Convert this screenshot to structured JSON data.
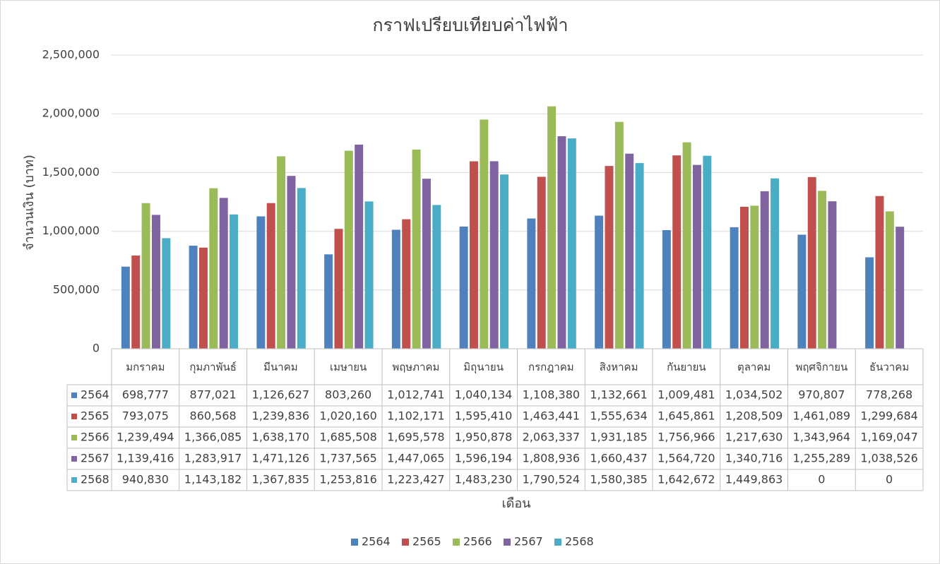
{
  "chart_data": {
    "type": "bar",
    "title": "กราฟเปรียบเทียบค่าไฟฟ้า",
    "y_label": "จำนวนเงิน (บาท)",
    "x_label": "เดือน",
    "categories": [
      "มกราคม",
      "กุมภาพันธ์",
      "มีนาคม",
      "เมษายน",
      "พฤษภาคม",
      "มิถุนายน",
      "กรกฎาคม",
      "สิงหาคม",
      "กันยายน",
      "ตุลาคม",
      "พฤศจิกายน",
      "ธันวาคม"
    ],
    "series": [
      {
        "name": "2564",
        "color": "#4f81bd",
        "values": [
          698777,
          877021,
          1126627,
          803260,
          1012741,
          1040134,
          1108380,
          1132661,
          1009481,
          1034502,
          970807,
          778268
        ],
        "value_labels": [
          "698,777",
          "877,021",
          "1,126,627",
          "803,260",
          "1,012,741",
          "1,040,134",
          "1,108,380",
          "1,132,661",
          "1,009,481",
          "1,034,502",
          "970,807",
          "778,268"
        ]
      },
      {
        "name": "2565",
        "color": "#c0504d",
        "values": [
          793075,
          860568,
          1239836,
          1020160,
          1102171,
          1595410,
          1463441,
          1555634,
          1645861,
          1208509,
          1461089,
          1299684
        ],
        "value_labels": [
          "793,075",
          "860,568",
          "1,239,836",
          "1,020,160",
          "1,102,171",
          "1,595,410",
          "1,463,441",
          "1,555,634",
          "1,645,861",
          "1,208,509",
          "1,461,089",
          "1,299,684"
        ]
      },
      {
        "name": "2566",
        "color": "#9bbb59",
        "values": [
          1239494,
          1366085,
          1638170,
          1685508,
          1695578,
          1950878,
          2063337,
          1931185,
          1756966,
          1217630,
          1343964,
          1169047
        ],
        "value_labels": [
          "1,239,494",
          "1,366,085",
          "1,638,170",
          "1,685,508",
          "1,695,578",
          "1,950,878",
          "2,063,337",
          "1,931,185",
          "1,756,966",
          "1,217,630",
          "1,343,964",
          "1,169,047"
        ]
      },
      {
        "name": "2567",
        "color": "#8064a2",
        "values": [
          1139416,
          1283917,
          1471126,
          1737565,
          1447065,
          1596194,
          1808936,
          1660437,
          1564720,
          1340716,
          1255289,
          1038526
        ],
        "value_labels": [
          "1,139,416",
          "1,283,917",
          "1,471,126",
          "1,737,565",
          "1,447,065",
          "1,596,194",
          "1,808,936",
          "1,660,437",
          "1,564,720",
          "1,340,716",
          "1,255,289",
          "1,038,526"
        ]
      },
      {
        "name": "2568",
        "color": "#4bacc6",
        "values": [
          940830,
          1143182,
          1367835,
          1253816,
          1223427,
          1483230,
          1790524,
          1580385,
          1642672,
          1449863,
          0,
          0
        ],
        "value_labels": [
          "940,830",
          "1,143,182",
          "1,367,835",
          "1,253,816",
          "1,223,427",
          "1,483,230",
          "1,790,524",
          "1,580,385",
          "1,642,672",
          "1,449,863",
          "0",
          "0"
        ]
      }
    ],
    "ylim": [
      0,
      2500000
    ],
    "yticks": [
      0,
      {
        "value": 500000,
        "label": "500,000"
      },
      {
        "value": 1000000,
        "label": "1,000,000"
      },
      {
        "value": 1500000,
        "label": "1,500,000"
      },
      {
        "value": 2000000,
        "label": "2,000,000"
      },
      {
        "value": 2500000,
        "label": "2,500,000"
      }
    ],
    "grid": true,
    "legend": "bottom"
  }
}
